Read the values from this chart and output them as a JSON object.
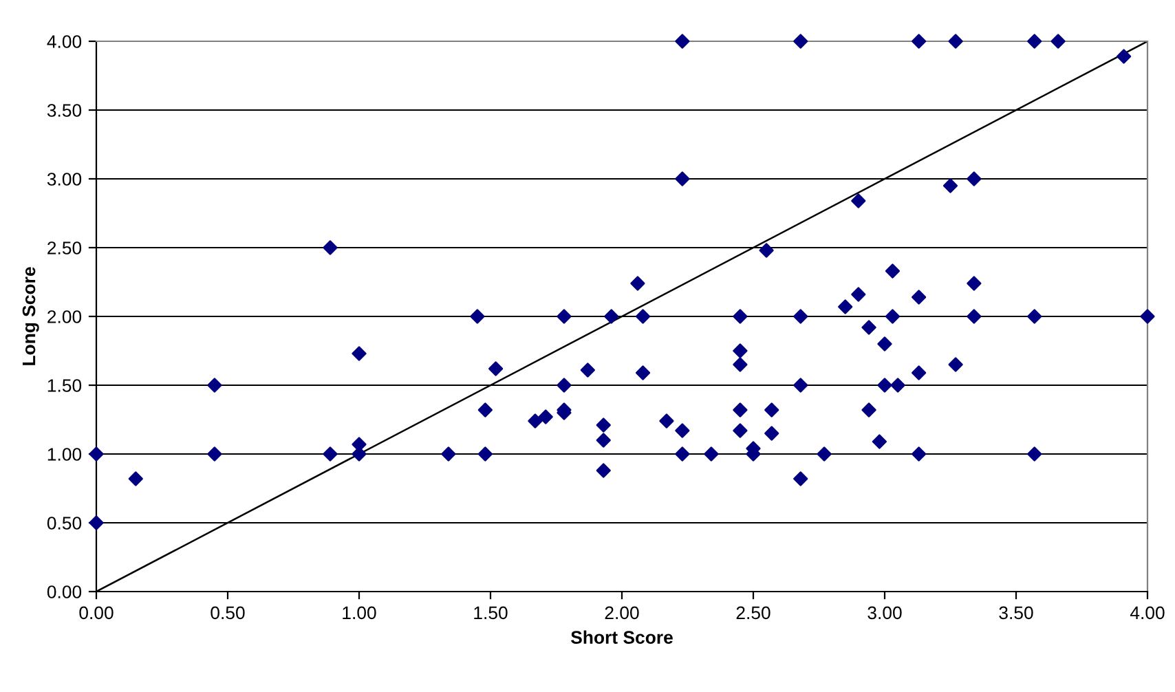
{
  "chart_data": {
    "type": "scatter",
    "xlabel": "Short Score",
    "ylabel": "Long Score",
    "xlim": [
      0,
      4
    ],
    "ylim": [
      0,
      4
    ],
    "xticks": [
      {
        "value": 0,
        "label": "0.00"
      },
      {
        "value": 0.5,
        "label": "0.50"
      },
      {
        "value": 1,
        "label": "1.00"
      },
      {
        "value": 1.5,
        "label": "1.50"
      },
      {
        "value": 2,
        "label": "2.00"
      },
      {
        "value": 2.5,
        "label": "2.50"
      },
      {
        "value": 3,
        "label": "3.00"
      },
      {
        "value": 3.5,
        "label": "3.50"
      },
      {
        "value": 4,
        "label": "4.00"
      }
    ],
    "yticks": [
      {
        "value": 0,
        "label": "0.00"
      },
      {
        "value": 0.5,
        "label": "0.50"
      },
      {
        "value": 1,
        "label": "1.00"
      },
      {
        "value": 1.5,
        "label": "1.50"
      },
      {
        "value": 2,
        "label": "2.00"
      },
      {
        "value": 2.5,
        "label": "2.50"
      },
      {
        "value": 3,
        "label": "3.00"
      },
      {
        "value": 3.5,
        "label": "3.50"
      },
      {
        "value": 4,
        "label": "4.00"
      }
    ],
    "grid": "y",
    "legend": false,
    "series": [
      {
        "marker": "diamond",
        "color": "#000080",
        "x": [
          0,
          0,
          0.15,
          0.45,
          0.45,
          0.89,
          0.89,
          1.0,
          1.0,
          1.0,
          1.34,
          1.45,
          1.48,
          1.48,
          1.52,
          1.67,
          1.71,
          1.78,
          1.78,
          1.78,
          1.78,
          1.87,
          1.93,
          1.93,
          1.93,
          1.96,
          2.23,
          2.68,
          3.13,
          3.27,
          3.57,
          3.66,
          3.91,
          2.23,
          3.25,
          3.34,
          2.9,
          2.55,
          2.06,
          3.03,
          3.34,
          2.9,
          3.13,
          2.85,
          2.08,
          2.45,
          2.68,
          3.03,
          3.34,
          3.57,
          4.0,
          2.94,
          3.0,
          2.45,
          2.45,
          2.08,
          3.27,
          2.68,
          3.0,
          3.05,
          3.13,
          2.45,
          2.57,
          2.94,
          2.17,
          2.23,
          2.45,
          2.57,
          2.98,
          2.5,
          2.23,
          2.34,
          2.5,
          2.77,
          3.13,
          3.57,
          2.68
        ],
        "values": [
          1.0,
          0.5,
          0.82,
          1.5,
          1.0,
          2.5,
          1.0,
          1.73,
          1.07,
          1.0,
          1.0,
          2.0,
          1.32,
          1.0,
          1.62,
          1.24,
          1.27,
          2.0,
          1.5,
          1.32,
          1.3,
          1.61,
          1.21,
          1.1,
          0.88,
          2.0,
          4.0,
          4.0,
          4.0,
          4.0,
          4.0,
          4.0,
          3.89,
          3.0,
          2.95,
          3.0,
          2.84,
          2.48,
          2.24,
          2.33,
          2.24,
          2.16,
          2.14,
          2.07,
          2.0,
          2.0,
          2.0,
          2.0,
          2.0,
          2.0,
          2.0,
          1.92,
          1.8,
          1.75,
          1.65,
          1.59,
          1.65,
          1.5,
          1.5,
          1.5,
          1.59,
          1.32,
          1.32,
          1.32,
          1.24,
          1.17,
          1.17,
          1.15,
          1.09,
          1.04,
          1.0,
          1.0,
          1.0,
          1.0,
          1.0,
          1.0,
          0.82
        ]
      },
      {
        "type": "line",
        "marker": "none",
        "line_style": "solid",
        "color": "#000000",
        "x": [
          0,
          4
        ],
        "values": [
          0,
          4
        ]
      }
    ]
  }
}
